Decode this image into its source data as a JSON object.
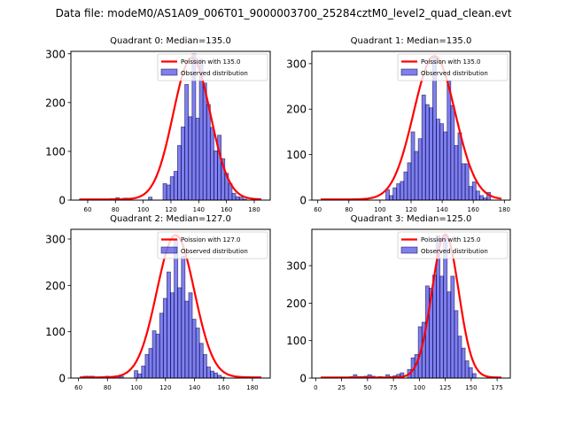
{
  "suptitle": "Data file: modeM0/AS1A09_006T01_9000003700_25284cztM0_level2_quad_clean.evt",
  "chart_data": [
    {
      "type": "bar",
      "title": "Quadrant 0: Median=135.0",
      "xlabel": "",
      "ylabel": "",
      "xlim": [
        47.9,
        191.5
      ],
      "ylim": [
        0,
        305
      ],
      "xticks": [
        60,
        80,
        100,
        120,
        140,
        160,
        180
      ],
      "yticks": [
        0,
        100,
        200,
        300
      ],
      "legend": {
        "position": "top-right",
        "entries": [
          "Poission with 135.0",
          "Observed distribution"
        ]
      },
      "bin_start": 54,
      "bin_width": 2.62,
      "hist": [
        2,
        0,
        0,
        0,
        0,
        0,
        0,
        2,
        2,
        0,
        5,
        0,
        4,
        4,
        0,
        0,
        0,
        0,
        0,
        6,
        0,
        0,
        0,
        34,
        31,
        48,
        59,
        112,
        150,
        237,
        171,
        300,
        168,
        289,
        240,
        196,
        149,
        101,
        133,
        85,
        55,
        34,
        14,
        7,
        6,
        2,
        0,
        0,
        0,
        0
      ],
      "poisson_mean": 135.0,
      "poisson_peak": 290,
      "colors": {
        "bars": "#0000dd",
        "bar_edge": "#000044",
        "curve": "#ff0000"
      }
    },
    {
      "type": "bar",
      "title": "Quadrant 1: Median=135.0",
      "xlabel": "",
      "ylabel": "",
      "xlim": [
        56.2,
        183.8
      ],
      "ylim": [
        0,
        327
      ],
      "xticks": [
        60,
        80,
        100,
        120,
        140,
        160,
        180
      ],
      "yticks": [
        0,
        100,
        200,
        300
      ],
      "legend": {
        "position": "top-right",
        "entries": [
          "Poission with 135.0",
          "Observed distribution"
        ]
      },
      "bin_start": 62,
      "bin_width": 2.32,
      "hist": [
        0,
        0,
        0,
        0,
        0,
        0,
        0,
        0,
        0,
        0,
        0,
        0,
        0,
        0,
        0,
        0,
        0,
        0,
        23,
        10,
        27,
        36,
        41,
        62,
        82,
        150,
        107,
        135,
        231,
        210,
        203,
        314,
        178,
        168,
        150,
        262,
        208,
        120,
        148,
        80,
        80,
        30,
        40,
        20,
        10,
        5,
        17,
        0,
        0,
        0
      ],
      "poisson_mean": 135.0,
      "poisson_peak": 315,
      "colors": {
        "bars": "#0000dd",
        "bar_edge": "#000044",
        "curve": "#ff0000"
      }
    },
    {
      "type": "bar",
      "title": "Quadrant 2: Median=127.0",
      "xlabel": "",
      "ylabel": "",
      "xlim": [
        54.75,
        192.25
      ],
      "ylim": [
        0,
        321
      ],
      "xticks": [
        60,
        80,
        100,
        120,
        140,
        160,
        180
      ],
      "yticks": [
        0,
        100,
        200,
        300
      ],
      "legend": {
        "position": "top-right",
        "entries": [
          "Poission with 127.0",
          "Observed distribution"
        ]
      },
      "bin_start": 61,
      "bin_width": 2.5,
      "hist": [
        2,
        4,
        4,
        4,
        0,
        0,
        0,
        4,
        0,
        0,
        4,
        4,
        0,
        0,
        0,
        16,
        9,
        26,
        51,
        64,
        102,
        95,
        140,
        172,
        229,
        184,
        300,
        195,
        263,
        166,
        184,
        127,
        108,
        75,
        51,
        24,
        15,
        11,
        6,
        2,
        0,
        0,
        0,
        0,
        0,
        0,
        0,
        0,
        0,
        0
      ],
      "poisson_mean": 127.0,
      "poisson_peak": 307,
      "colors": {
        "bars": "#0000dd",
        "bar_edge": "#000044",
        "curve": "#ff0000"
      }
    },
    {
      "type": "bar",
      "title": "Quadrant 3: Median=125.0",
      "xlabel": "",
      "ylabel": "",
      "xlim": [
        -3.7,
        187.7
      ],
      "ylim": [
        0,
        397
      ],
      "xticks": [
        0,
        25,
        50,
        75,
        100,
        125,
        150,
        175
      ],
      "yticks": [
        0,
        100,
        200,
        300
      ],
      "legend": {
        "position": "top-right",
        "entries": [
          "Poission with 125.0",
          "Observed distribution"
        ]
      },
      "bin_start": 5,
      "bin_width": 3.48,
      "hist": [
        0,
        0,
        0,
        0,
        0,
        0,
        0,
        0,
        4,
        9,
        4,
        4,
        5,
        9,
        5,
        0,
        4,
        0,
        9,
        4,
        6,
        10,
        14,
        0,
        23,
        54,
        63,
        137,
        149,
        246,
        240,
        275,
        380,
        272,
        380,
        230,
        272,
        180,
        112,
        80,
        46,
        28,
        12,
        0,
        0,
        0,
        0,
        0,
        0,
        0
      ],
      "poisson_mean": 125.0,
      "poisson_peak": 382,
      "colors": {
        "bars": "#0000dd",
        "bar_edge": "#000044",
        "curve": "#ff0000"
      }
    }
  ]
}
